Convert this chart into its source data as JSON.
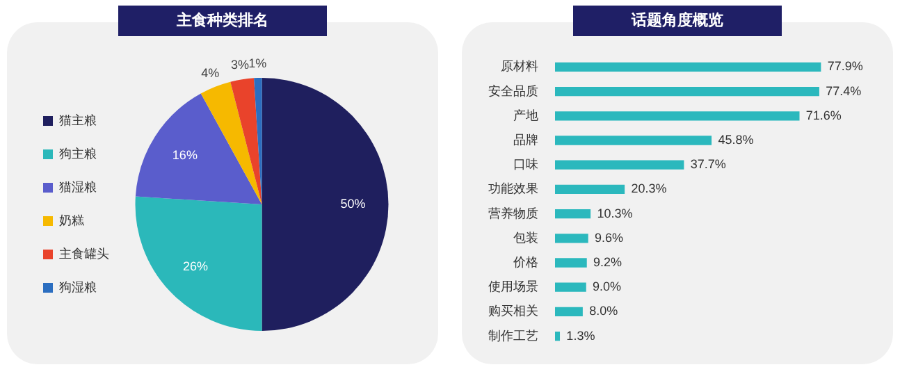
{
  "chart_data": [
    {
      "type": "pie",
      "title": "主食种类排名",
      "categories": [
        "猫主粮",
        "狗主粮",
        "猫湿粮",
        "奶糕",
        "主食罐头",
        "狗湿粮"
      ],
      "values": [
        50,
        26,
        16,
        4,
        3,
        1
      ],
      "value_labels": [
        "50%",
        "26%",
        "16%",
        "4%",
        "3%",
        "1%"
      ],
      "colors": [
        "#1f1f5e",
        "#2bb8ba",
        "#5a5dcc",
        "#f6b900",
        "#e9432b",
        "#2b6ec0"
      ],
      "legend": "left"
    },
    {
      "type": "bar",
      "title": "话题角度概览",
      "orientation": "horizontal",
      "tick_labels": "y",
      "color": "#2bb8bd",
      "categories": [
        "原材料",
        "安全品质",
        "产地",
        "品牌",
        "口味",
        "功能效果",
        "营养物质",
        "包装",
        "价格",
        "使用场景",
        "购买相关",
        "制作工艺"
      ],
      "values": [
        77.9,
        77.4,
        71.6,
        45.8,
        37.7,
        20.3,
        10.3,
        9.6,
        9.2,
        9.0,
        8.0,
        1.3
      ],
      "value_labels": [
        "77.9%",
        "77.4%",
        "71.6%",
        "45.8%",
        "37.7%",
        "20.3%",
        "10.3%",
        "9.6%",
        "9.2%",
        "9.0%",
        "8.0%",
        "1.3%"
      ]
    }
  ]
}
